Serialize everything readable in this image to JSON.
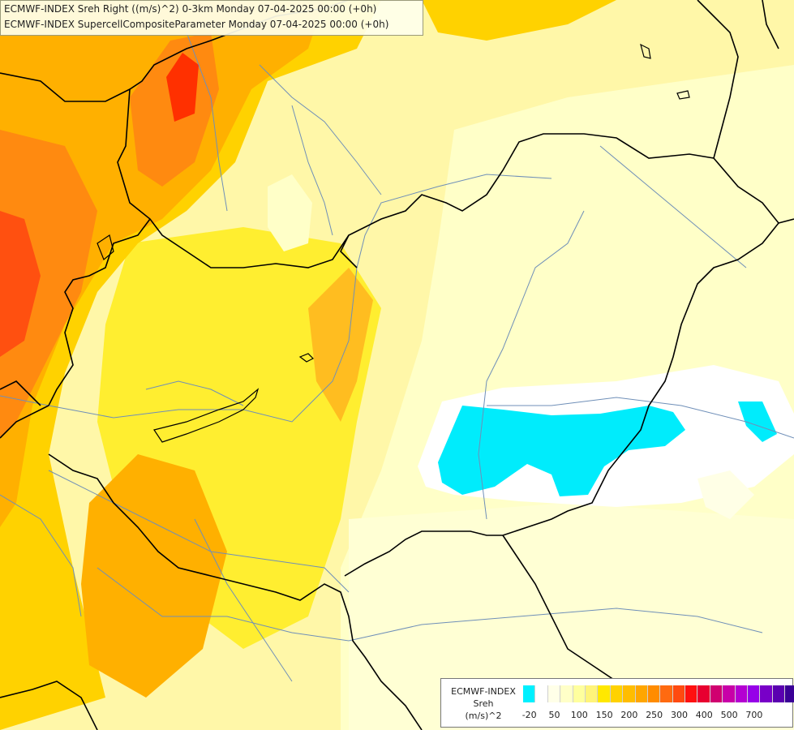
{
  "header": {
    "line1": "ECMWF-INDEX Sreh Right ((m/s)^2) 0-3km Monday 07-04-2025 00:00 (+0h)",
    "line2": "ECMWF-INDEX SupercellCompositeParameter Monday 07-04-2025 00:00 (+0h)"
  },
  "legend": {
    "line1": "ECMWF-INDEX",
    "line2": "Sreh",
    "line3": "(m/s)^2",
    "colors": [
      "#00f0ff",
      "#ffffff",
      "#ffffe8",
      "#ffffc8",
      "#ffff9e",
      "#fff47a",
      "#ffe800",
      "#ffd200",
      "#ffbd00",
      "#ffa600",
      "#ff8c00",
      "#ff6a10",
      "#ff4a10",
      "#ff1010",
      "#e80030",
      "#d00070",
      "#c800a8",
      "#b400d2",
      "#9600e8",
      "#7800c8",
      "#5a00b0",
      "#3a0096",
      "#14007a"
    ],
    "ticks": [
      "-20",
      "50",
      "100",
      "150",
      "200",
      "250",
      "300",
      "400",
      "500",
      "700"
    ]
  },
  "map": {
    "field_colors": {
      "pale": "#ffffc0",
      "light": "#ffff90",
      "yellow": "#ffee30",
      "gold": "#ffd200",
      "orange": "#ffb000",
      "dark_orange": "#ff8a10",
      "red_orange": "#ff5010",
      "red": "#ff2000",
      "negative": "#00ecfc",
      "zero": "#ffffff"
    },
    "border_color": "#000000",
    "river_color": "#6f8fb8"
  }
}
